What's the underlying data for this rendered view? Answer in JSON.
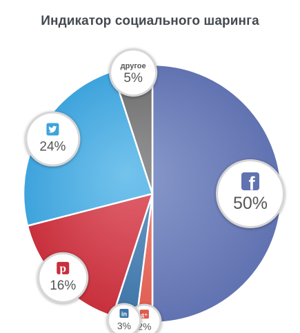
{
  "chart_data": {
    "type": "pie",
    "title": "Индикатор социального шаринга",
    "slices": [
      {
        "name": "Facebook",
        "icon": "facebook-icon",
        "value": 50,
        "label": "50%",
        "color": "#6172b1",
        "light": "#8b9ccd"
      },
      {
        "name": "Google+",
        "icon": "google-plus-icon",
        "value": 2,
        "label": "2%",
        "color": "#df5a4e",
        "light": "#ef8c80"
      },
      {
        "name": "LinkedIn",
        "icon": "linkedin-icon",
        "value": 3,
        "label": "3%",
        "color": "#3d74a6",
        "light": "#6b9cc8"
      },
      {
        "name": "Pinterest",
        "icon": "pinterest-icon",
        "value": 16,
        "label": "16%",
        "color": "#c7303c",
        "light": "#e1646f"
      },
      {
        "name": "Twitter",
        "icon": "twitter-icon",
        "value": 24,
        "label": "24%",
        "color": "#3ea3dc",
        "light": "#73c3ec"
      },
      {
        "name": "другое",
        "icon": "",
        "value": 5,
        "label": "5%",
        "caption": "другое",
        "color": "#6b6b6b",
        "light": "#959595"
      }
    ]
  }
}
